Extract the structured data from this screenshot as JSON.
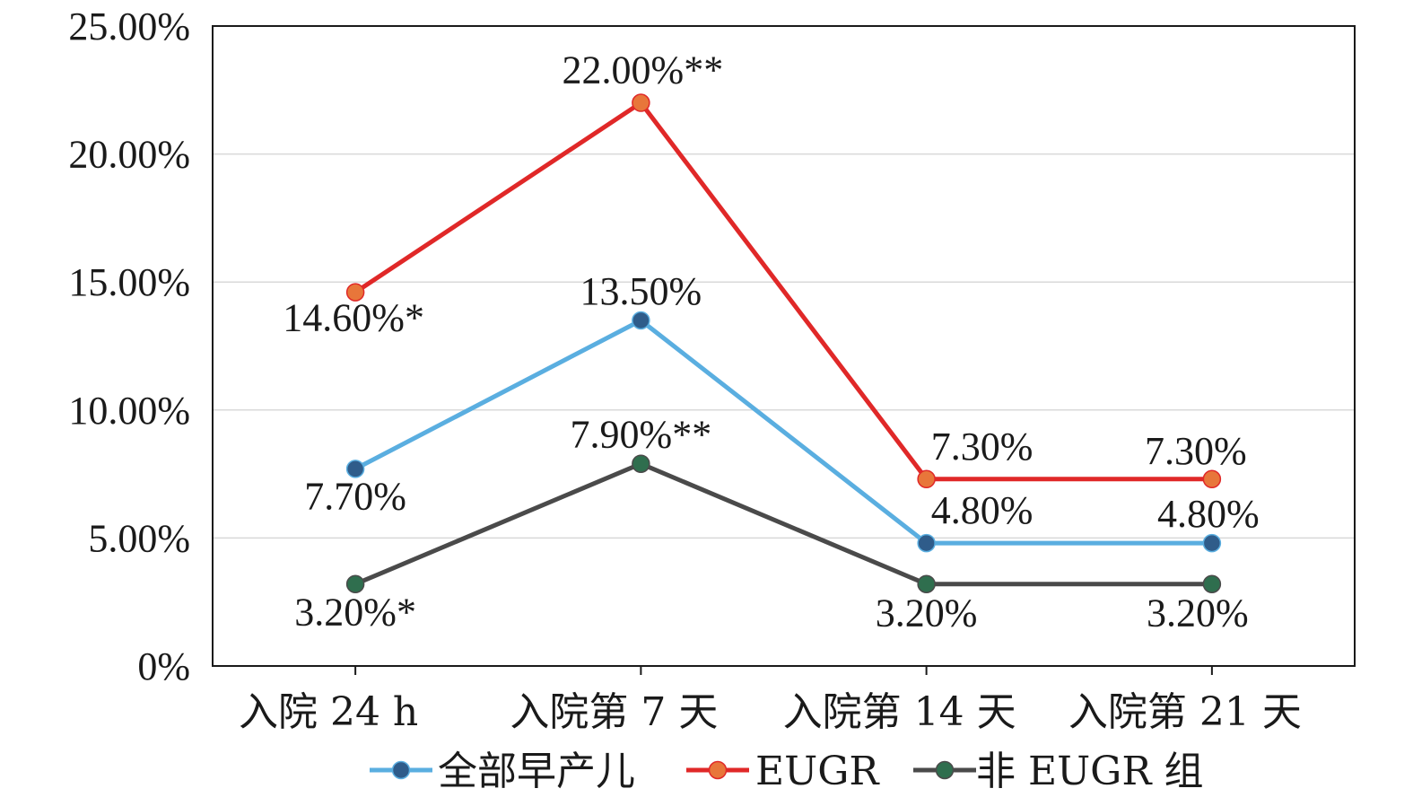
{
  "chart_data": {
    "type": "line",
    "categories": [
      "入院 24 h",
      "入院第 7 天",
      "入院第 14 天",
      "入院第 21 天"
    ],
    "ylim": [
      0,
      25
    ],
    "yticks": [
      0,
      5,
      10,
      15,
      20,
      25
    ],
    "ytick_labels": [
      "0%",
      "5.00%",
      "10.00%",
      "15.00%",
      "20.00%",
      "25.00%"
    ],
    "grid": true,
    "legend_position": "bottom",
    "series": [
      {
        "name": "全部早产儿",
        "values": [
          7.7,
          13.5,
          4.8,
          4.8
        ],
        "labels": [
          "7.70%",
          "13.50%",
          "4.80%",
          "4.80%"
        ],
        "line_color": "#5aaee0",
        "marker_color": "#2f5c8a"
      },
      {
        "name": "EUGR",
        "values": [
          14.6,
          22.0,
          7.3,
          7.3
        ],
        "labels": [
          "14.60%*",
          "22.00%**",
          "7.30%",
          "7.30%"
        ],
        "line_color": "#e02828",
        "marker_color": "#e8763a"
      },
      {
        "name": "非 EUGR 组",
        "values": [
          3.2,
          7.9,
          3.2,
          3.2
        ],
        "labels": [
          "3.20%*",
          "7.90%**",
          "3.20%",
          "3.20%"
        ],
        "line_color": "#4a4a4a",
        "marker_color": "#2f6e4e"
      }
    ]
  }
}
